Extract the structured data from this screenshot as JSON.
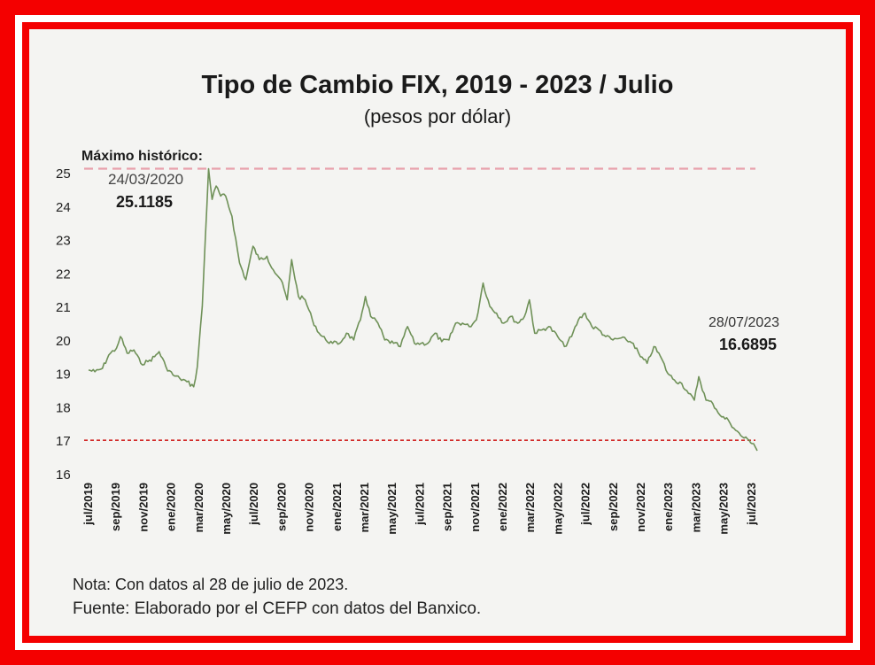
{
  "chart_data": {
    "type": "line",
    "title": "Tipo de Cambio FIX, 2019 - 2023 / Julio",
    "subtitle": "(pesos por dólar)",
    "ylim": [
      16,
      25
    ],
    "y_ticks": [
      "16",
      "17",
      "18",
      "19",
      "20",
      "21",
      "22",
      "23",
      "24",
      "25"
    ],
    "x_tick_labels": [
      "jul/2019",
      "sep/2019",
      "nov/2019",
      "ene/2020",
      "mar/2020",
      "may/2020",
      "jul/2020",
      "sep/2020",
      "nov/2020",
      "ene/2021",
      "mar/2021",
      "may/2021",
      "jul/2021",
      "sep/2021",
      "nov/2021",
      "ene/2022",
      "mar/2022",
      "may/2022",
      "jul/2022",
      "sep/2022",
      "nov/2022",
      "ene/2023",
      "mar/2023",
      "may/2023",
      "jul/2023"
    ],
    "series": [
      {
        "color": "#6f9158",
        "points": [
          [
            "2019-07-01",
            19.1
          ],
          [
            "2019-07-15",
            19.05
          ],
          [
            "2019-08-01",
            19.15
          ],
          [
            "2019-08-15",
            19.55
          ],
          [
            "2019-09-01",
            19.75
          ],
          [
            "2019-09-10",
            20.1
          ],
          [
            "2019-09-25",
            19.6
          ],
          [
            "2019-10-10",
            19.7
          ],
          [
            "2019-10-25",
            19.3
          ],
          [
            "2019-11-10",
            19.35
          ],
          [
            "2019-11-25",
            19.5
          ],
          [
            "2019-12-05",
            19.65
          ],
          [
            "2019-12-20",
            19.2
          ],
          [
            "2020-01-05",
            18.95
          ],
          [
            "2020-01-20",
            18.85
          ],
          [
            "2020-02-05",
            18.75
          ],
          [
            "2020-02-20",
            18.6
          ],
          [
            "2020-02-28",
            19.2
          ],
          [
            "2020-03-10",
            21.0
          ],
          [
            "2020-03-24",
            25.1185
          ],
          [
            "2020-04-01",
            24.2
          ],
          [
            "2020-04-10",
            24.6
          ],
          [
            "2020-04-20",
            24.3
          ],
          [
            "2020-05-01",
            24.3
          ],
          [
            "2020-05-15",
            23.7
          ],
          [
            "2020-06-01",
            22.3
          ],
          [
            "2020-06-15",
            21.8
          ],
          [
            "2020-07-01",
            22.8
          ],
          [
            "2020-07-15",
            22.4
          ],
          [
            "2020-08-01",
            22.5
          ],
          [
            "2020-08-15",
            22.1
          ],
          [
            "2020-09-01",
            21.8
          ],
          [
            "2020-09-15",
            21.2
          ],
          [
            "2020-09-25",
            22.4
          ],
          [
            "2020-10-10",
            21.3
          ],
          [
            "2020-10-25",
            21.2
          ],
          [
            "2020-11-10",
            20.6
          ],
          [
            "2020-11-25",
            20.2
          ],
          [
            "2020-12-10",
            20.0
          ],
          [
            "2020-12-25",
            19.9
          ],
          [
            "2021-01-10",
            19.9
          ],
          [
            "2021-01-25",
            20.2
          ],
          [
            "2021-02-10",
            20.0
          ],
          [
            "2021-02-25",
            20.6
          ],
          [
            "2021-03-08",
            21.3
          ],
          [
            "2021-03-20",
            20.7
          ],
          [
            "2021-04-05",
            20.5
          ],
          [
            "2021-04-20",
            20.0
          ],
          [
            "2021-05-10",
            19.9
          ],
          [
            "2021-05-25",
            19.8
          ],
          [
            "2021-06-10",
            20.4
          ],
          [
            "2021-06-25",
            19.9
          ],
          [
            "2021-07-10",
            19.9
          ],
          [
            "2021-07-25",
            19.9
          ],
          [
            "2021-08-10",
            20.2
          ],
          [
            "2021-08-25",
            19.95
          ],
          [
            "2021-09-10",
            20.0
          ],
          [
            "2021-09-25",
            20.5
          ],
          [
            "2021-10-10",
            20.5
          ],
          [
            "2021-10-25",
            20.4
          ],
          [
            "2021-11-10",
            20.6
          ],
          [
            "2021-11-25",
            21.7
          ],
          [
            "2021-12-10",
            21.0
          ],
          [
            "2021-12-25",
            20.8
          ],
          [
            "2022-01-10",
            20.5
          ],
          [
            "2022-01-25",
            20.7
          ],
          [
            "2022-02-10",
            20.5
          ],
          [
            "2022-02-25",
            20.7
          ],
          [
            "2022-03-08",
            21.2
          ],
          [
            "2022-03-20",
            20.2
          ],
          [
            "2022-04-05",
            20.3
          ],
          [
            "2022-04-20",
            20.4
          ],
          [
            "2022-05-10",
            20.1
          ],
          [
            "2022-05-25",
            19.8
          ],
          [
            "2022-06-10",
            20.1
          ],
          [
            "2022-06-25",
            20.6
          ],
          [
            "2022-07-10",
            20.8
          ],
          [
            "2022-07-25",
            20.4
          ],
          [
            "2022-08-10",
            20.3
          ],
          [
            "2022-08-25",
            20.1
          ],
          [
            "2022-09-10",
            20.0
          ],
          [
            "2022-09-25",
            20.05
          ],
          [
            "2022-10-10",
            20.0
          ],
          [
            "2022-10-25",
            19.9
          ],
          [
            "2022-11-10",
            19.5
          ],
          [
            "2022-11-25",
            19.3
          ],
          [
            "2022-12-10",
            19.8
          ],
          [
            "2022-12-25",
            19.5
          ],
          [
            "2023-01-10",
            19.0
          ],
          [
            "2023-01-25",
            18.8
          ],
          [
            "2023-02-10",
            18.7
          ],
          [
            "2023-02-25",
            18.4
          ],
          [
            "2023-03-10",
            18.2
          ],
          [
            "2023-03-20",
            18.9
          ],
          [
            "2023-04-05",
            18.2
          ],
          [
            "2023-04-20",
            18.1
          ],
          [
            "2023-05-10",
            17.7
          ],
          [
            "2023-05-25",
            17.6
          ],
          [
            "2023-06-10",
            17.3
          ],
          [
            "2023-06-25",
            17.1
          ],
          [
            "2023-07-10",
            17.0
          ],
          [
            "2023-07-20",
            16.9
          ],
          [
            "2023-07-28",
            16.6895
          ]
        ]
      }
    ],
    "reference_lines": [
      {
        "value": 25.1185,
        "color": "#e8a0ac"
      },
      {
        "value": 17.0,
        "color": "#d22a2a"
      }
    ],
    "annotations": {
      "max_label": "Máximo histórico:",
      "max_date": "24/03/2020",
      "max_value": "25.1185",
      "last_date": "28/07/2023",
      "last_value": "16.6895"
    },
    "notes": {
      "nota": "Nota: Con datos al 28 de julio de 2023.",
      "fuente": "Fuente: Elaborado por el CEFP con datos del Banxico."
    }
  }
}
